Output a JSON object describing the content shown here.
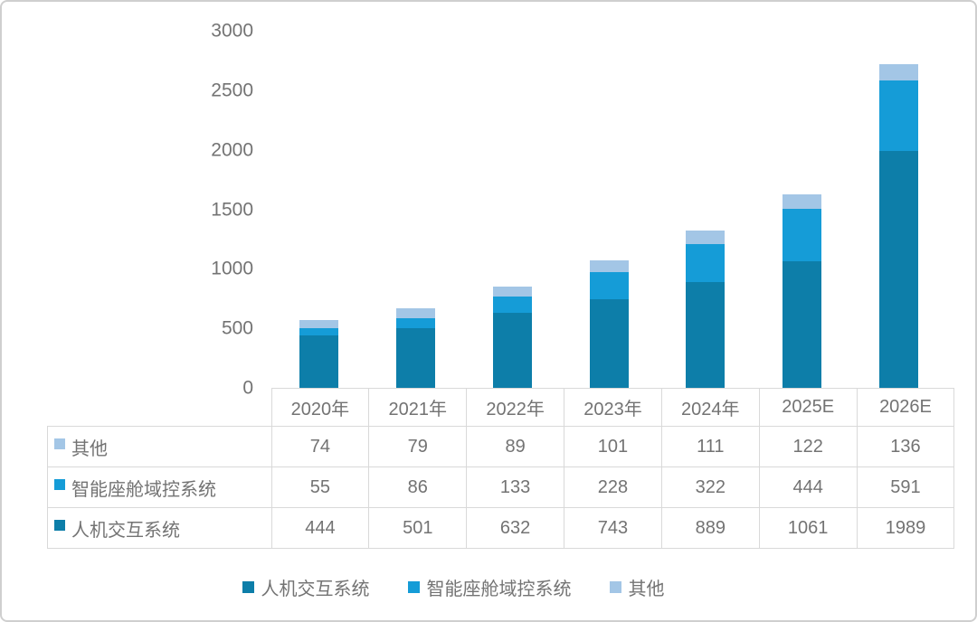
{
  "frame": {
    "background": "#ffffff",
    "border_color": "#cfcfcf",
    "text_color": "#737373",
    "table_border_color": "#d9d9d9"
  },
  "chart_data": {
    "type": "bar",
    "stacked": true,
    "title": "",
    "xlabel": "",
    "ylabel": "",
    "categories": [
      "2020年",
      "2021年",
      "2022年",
      "2023年",
      "2024年",
      "2025E",
      "2026E"
    ],
    "series": [
      {
        "name": "人机交互系统",
        "color": "#0D7EA9",
        "values": [
          444,
          501,
          632,
          743,
          889,
          1061,
          1989
        ]
      },
      {
        "name": "智能座舱域控系统",
        "color": "#159CD7",
        "values": [
          55,
          86,
          133,
          228,
          322,
          444,
          591
        ]
      },
      {
        "name": "其他",
        "color": "#A3C6E6",
        "values": [
          74,
          79,
          89,
          101,
          111,
          122,
          136
        ]
      }
    ],
    "ylim": [
      0,
      3000
    ],
    "yticks": [
      0,
      500,
      1000,
      1500,
      2000,
      2500,
      3000
    ],
    "grid": false,
    "legend_position": "bottom",
    "legend_order": [
      "人机交互系统",
      "智能座舱域控系统",
      "其他"
    ],
    "table_row_order": [
      "其他",
      "智能座舱域控系统",
      "人机交互系统"
    ]
  }
}
